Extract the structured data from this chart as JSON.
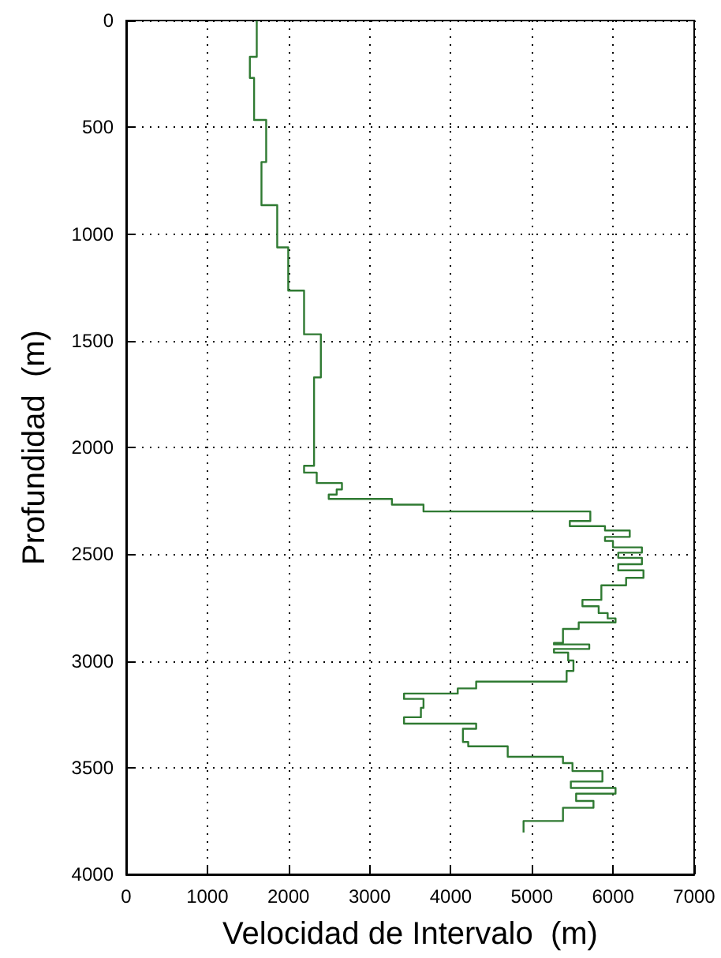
{
  "chart_data": {
    "type": "line",
    "xlabel": "Velocidad de Intervalo  (m)",
    "ylabel": "Profundidad  (m)",
    "xlim": [
      0,
      7000
    ],
    "xticks": [
      0,
      1000,
      2000,
      3000,
      4000,
      5000,
      6000,
      7000
    ],
    "ylim": [
      4000,
      0
    ],
    "yticks": [
      0,
      500,
      1000,
      1500,
      2000,
      2500,
      3000,
      3500,
      4000
    ],
    "grid": true,
    "marker": "none",
    "line_style": "solid",
    "series": [
      {
        "color": "#2f7a32",
        "x": [
          1609,
          1609,
          1524,
          1524,
          1576,
          1576,
          1725,
          1725,
          1667,
          1667,
          1861,
          1861,
          1997,
          1997,
          2192,
          2192,
          2399,
          2399,
          2315,
          2315,
          2192,
          2192,
          2348,
          2348,
          2659,
          2659,
          2594,
          2594,
          2496,
          2496,
          3275,
          3275,
          3664,
          3664,
          5720,
          5720,
          5467,
          5467,
          5901,
          5901,
          6206,
          6206,
          5901,
          5901,
          5999,
          5999,
          6356,
          6356,
          6064,
          6064,
          6356,
          6356,
          6064,
          6064,
          6375,
          6375,
          6161,
          6161,
          5856,
          5856,
          5623,
          5623,
          5823,
          5823,
          5934,
          5934,
          6031,
          6031,
          5577,
          5577,
          5383,
          5383,
          5272,
          5272,
          5707,
          5707,
          5272,
          5272,
          5447,
          5447,
          5512,
          5512,
          5428,
          5428,
          4313,
          4313,
          4086,
          4086,
          3424,
          3424,
          3664,
          3664,
          3632,
          3632,
          3424,
          3424,
          4313,
          4313,
          4150,
          4150,
          4215,
          4215,
          4702,
          4702,
          5383,
          5383,
          5500,
          5500,
          5869,
          5869,
          5480,
          5480,
          6031,
          6031,
          5545,
          5545,
          5759,
          5759,
          5383,
          5383,
          4897,
          4897
        ],
        "values": [
          0,
          170,
          170,
          269,
          269,
          466,
          466,
          663,
          663,
          865,
          865,
          1063,
          1063,
          1265,
          1265,
          1470,
          1470,
          1672,
          1672,
          2086,
          2086,
          2118,
          2118,
          2167,
          2167,
          2197,
          2197,
          2221,
          2221,
          2241,
          2241,
          2268,
          2268,
          2300,
          2300,
          2345,
          2345,
          2369,
          2369,
          2389,
          2389,
          2419,
          2419,
          2438,
          2438,
          2468,
          2468,
          2493,
          2493,
          2517,
          2517,
          2547,
          2547,
          2576,
          2576,
          2611,
          2611,
          2646,
          2646,
          2714,
          2714,
          2744,
          2744,
          2776,
          2776,
          2801,
          2801,
          2820,
          2820,
          2850,
          2850,
          2916,
          2916,
          2923,
          2923,
          2944,
          2944,
          2961,
          2961,
          2998,
          2998,
          3047,
          3047,
          3097,
          3097,
          3129,
          3129,
          3153,
          3153,
          3178,
          3178,
          3220,
          3220,
          3264,
          3264,
          3294,
          3294,
          3318,
          3318,
          3380,
          3380,
          3400,
          3400,
          3449,
          3449,
          3479,
          3479,
          3516,
          3516,
          3565,
          3565,
          3595,
          3595,
          3622,
          3622,
          3656,
          3656,
          3688,
          3688,
          3750,
          3750,
          3804
        ]
      }
    ]
  }
}
